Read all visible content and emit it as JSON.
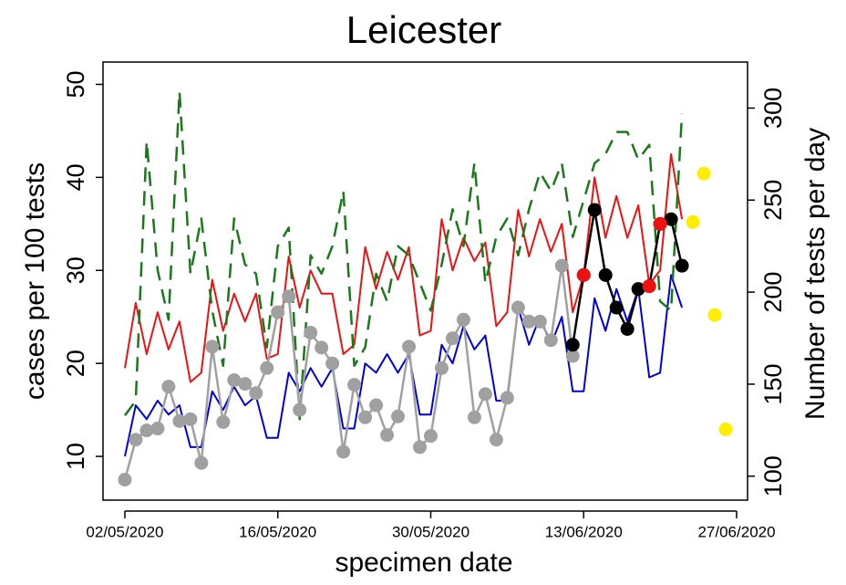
{
  "chart_data": {
    "type": "line",
    "title": "Leicester",
    "xlabel": "specimen date",
    "ylabel": "cases per 100 tests",
    "y2label": "Number of tests per day",
    "x": [
      "02/05/2020",
      "03/05/2020",
      "04/05/2020",
      "05/05/2020",
      "06/05/2020",
      "07/05/2020",
      "08/05/2020",
      "09/05/2020",
      "10/05/2020",
      "11/05/2020",
      "12/05/2020",
      "13/05/2020",
      "14/05/2020",
      "15/05/2020",
      "16/05/2020",
      "17/05/2020",
      "18/05/2020",
      "19/05/2020",
      "20/05/2020",
      "21/05/2020",
      "22/05/2020",
      "23/05/2020",
      "24/05/2020",
      "25/05/2020",
      "26/05/2020",
      "27/05/2020",
      "28/05/2020",
      "29/05/2020",
      "30/05/2020",
      "31/05/2020",
      "01/06/2020",
      "02/06/2020",
      "03/06/2020",
      "04/06/2020",
      "05/06/2020",
      "06/06/2020",
      "07/06/2020",
      "08/06/2020",
      "09/06/2020",
      "10/06/2020",
      "11/06/2020",
      "12/06/2020",
      "13/06/2020",
      "14/06/2020",
      "15/06/2020",
      "16/06/2020",
      "17/06/2020",
      "18/06/2020",
      "19/06/2020",
      "20/06/2020",
      "21/06/2020",
      "22/06/2020",
      "23/06/2020",
      "24/06/2020",
      "25/06/2020",
      "26/06/2020"
    ],
    "xlim": [
      "30/04/2020",
      "28/06/2020"
    ],
    "xticks": [
      "02/05/2020",
      "16/05/2020",
      "30/05/2020",
      "13/06/2020",
      "27/06/2020"
    ],
    "ylim": [
      5.3,
      52.4
    ],
    "yticks": [
      10,
      20,
      30,
      40,
      50
    ],
    "y2lim": [
      87,
      325
    ],
    "y2ticks": [
      100,
      150,
      200,
      250,
      300
    ],
    "series": [
      {
        "color": "#0000dd",
        "style": "line",
        "values": [
          10,
          15.5,
          14,
          16,
          14.5,
          15.5,
          11,
          11,
          17,
          15,
          17.5,
          15.5,
          16.5,
          12,
          12,
          19,
          17,
          19.5,
          17.5,
          19.5,
          13,
          13,
          20,
          19,
          21,
          19,
          21,
          14.5,
          14.5,
          22,
          20,
          24,
          21.5,
          23,
          16,
          16,
          26,
          22,
          25,
          22,
          25,
          17,
          17,
          27,
          23.5,
          28,
          24.5,
          28,
          18.5,
          19,
          29.5,
          26,
          null,
          null,
          null,
          null
        ]
      },
      {
        "color": "#ee1111",
        "style": "line",
        "values": [
          19.5,
          26.5,
          21,
          25.5,
          21.5,
          24.5,
          18,
          19,
          29,
          23.5,
          27.5,
          24.5,
          27.5,
          20.5,
          21,
          31.5,
          26,
          30,
          27.5,
          27.5,
          21,
          22,
          32.5,
          28,
          32,
          29,
          32.5,
          23,
          23.5,
          35.5,
          30,
          33.5,
          31,
          33,
          24,
          25.5,
          36.5,
          31.5,
          35.5,
          32,
          35,
          25.5,
          29.5,
          40,
          33.5,
          38,
          33.5,
          37,
          28.5,
          30,
          42.5,
          35.5,
          null,
          null,
          null,
          null
        ]
      },
      {
        "color": "#1a7a1a",
        "style": "dashed",
        "axis": "y2",
        "values": [
          133,
          141,
          282,
          212,
          185,
          309,
          210,
          240,
          190,
          160,
          240,
          215,
          210,
          170,
          225,
          235,
          131,
          220,
          210,
          225,
          255,
          160,
          170,
          210,
          195,
          225,
          220,
          205,
          190,
          215,
          245,
          225,
          270,
          205,
          230,
          240,
          220,
          245,
          265,
          255,
          270,
          230,
          250,
          270,
          275,
          287,
          287,
          272,
          280,
          195,
          190,
          297,
          null,
          null,
          null,
          null
        ]
      },
      {
        "color": "#a0a0a0",
        "style": "line+points",
        "values": [
          7.5,
          11.8,
          12.8,
          13,
          17.5,
          13.8,
          14,
          9.3,
          21.8,
          13.7,
          18.2,
          17.8,
          16.8,
          19.5,
          25.5,
          27.2,
          15,
          23.3,
          21.7,
          20,
          10.5,
          17.7,
          14.2,
          15.5,
          12.3,
          14.3,
          21.8,
          11,
          12.2,
          19.5,
          22.7,
          24.7,
          14.2,
          16.7,
          11.8,
          16.3,
          26,
          24.5,
          24.5,
          22.5,
          30.5,
          20.8,
          null,
          null,
          null,
          null,
          null,
          null,
          null,
          null,
          null,
          null,
          null,
          null,
          null,
          null
        ]
      },
      {
        "color": "#000000",
        "style": "line+points",
        "values": [
          null,
          null,
          null,
          null,
          null,
          null,
          null,
          null,
          null,
          null,
          null,
          null,
          null,
          null,
          null,
          null,
          null,
          null,
          null,
          null,
          null,
          null,
          null,
          null,
          null,
          null,
          null,
          null,
          null,
          null,
          null,
          null,
          null,
          null,
          null,
          null,
          null,
          null,
          null,
          null,
          null,
          22,
          29.5,
          36.5,
          29.5,
          26,
          23.7,
          28,
          28.3,
          35,
          35.5,
          30.5,
          null,
          null,
          null,
          null
        ]
      },
      {
        "color": "#ee1111",
        "style": "points",
        "values": [
          null,
          null,
          null,
          null,
          null,
          null,
          null,
          null,
          null,
          null,
          null,
          null,
          null,
          null,
          null,
          null,
          null,
          null,
          null,
          null,
          null,
          null,
          null,
          null,
          null,
          null,
          null,
          null,
          null,
          null,
          null,
          null,
          null,
          null,
          null,
          null,
          null,
          null,
          null,
          null,
          null,
          null,
          29.5,
          null,
          null,
          null,
          null,
          null,
          28.3,
          35,
          null,
          null,
          null,
          null,
          null,
          null
        ]
      },
      {
        "color": "#ffee00",
        "style": "points",
        "values": [
          null,
          null,
          null,
          null,
          null,
          null,
          null,
          null,
          null,
          null,
          null,
          null,
          null,
          null,
          null,
          null,
          null,
          null,
          null,
          null,
          null,
          null,
          null,
          null,
          null,
          null,
          null,
          null,
          null,
          null,
          null,
          null,
          null,
          null,
          null,
          null,
          null,
          null,
          null,
          null,
          null,
          null,
          null,
          null,
          null,
          null,
          null,
          null,
          null,
          null,
          null,
          null,
          35.2,
          40.4,
          25.2,
          12.9
        ]
      }
    ]
  }
}
